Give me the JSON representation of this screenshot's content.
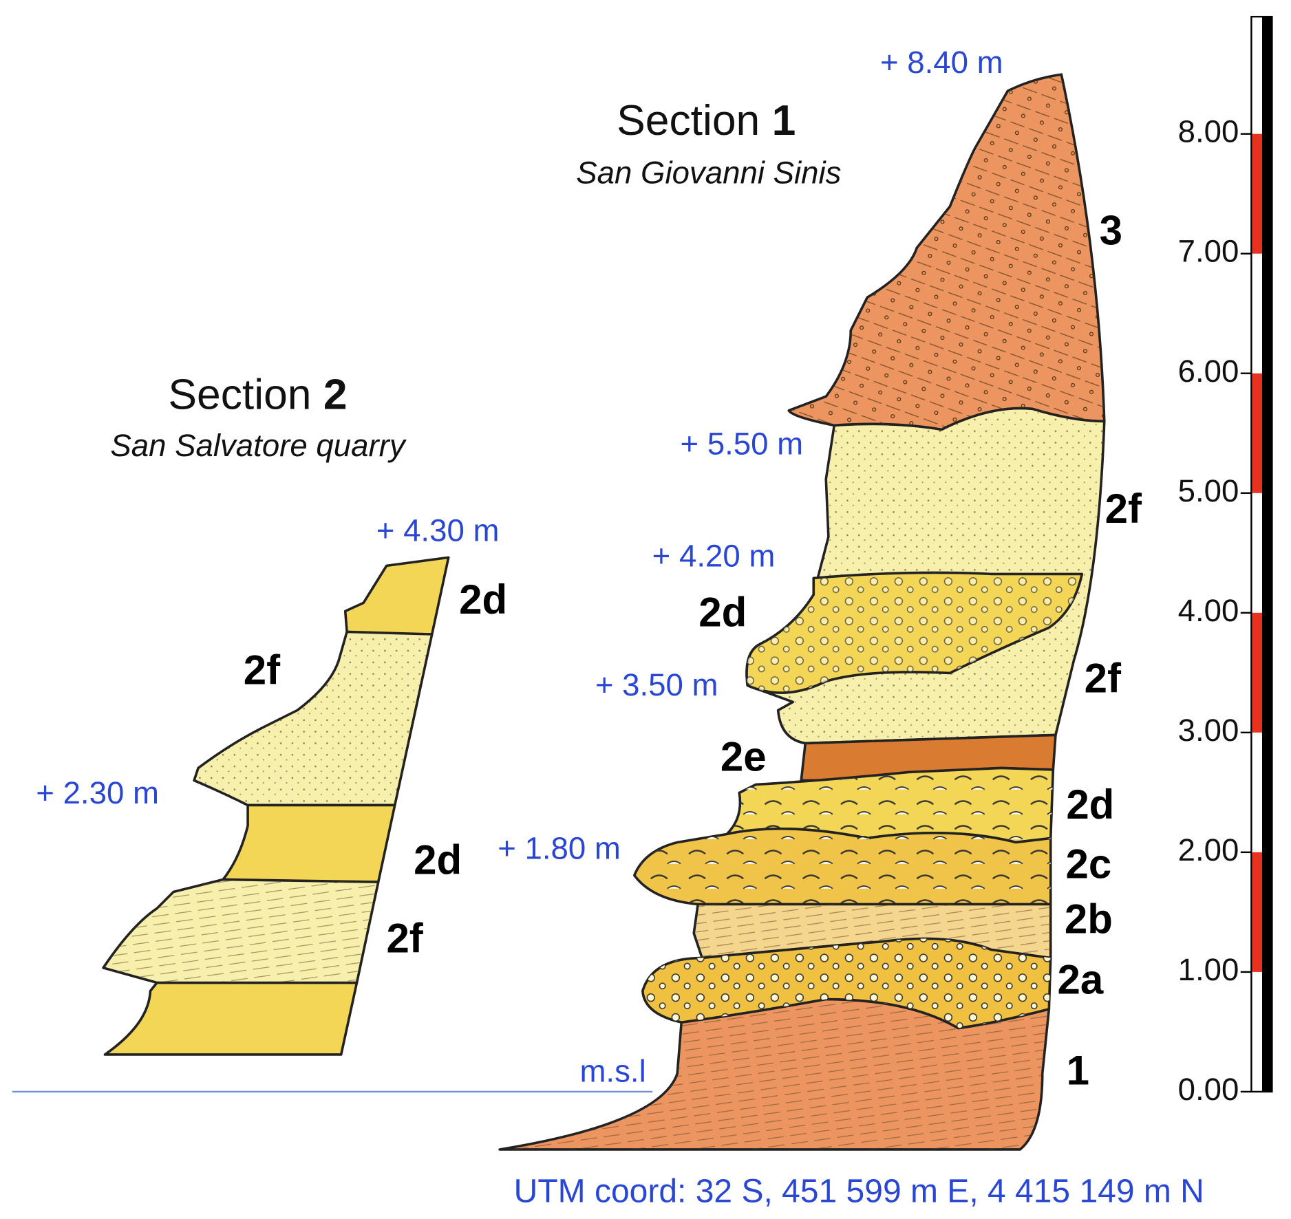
{
  "section1": {
    "title": "Section",
    "number": "1",
    "subtitle": "San Giovanni Sinis",
    "elevations": [
      "+ 8.40 m",
      "+ 5.50 m",
      "+ 4.20 m",
      "+ 3.50 m",
      "+ 1.80 m"
    ],
    "layers": [
      "3",
      "2f",
      "2d",
      "2f",
      "2e",
      "2d",
      "2c",
      "2b",
      "2a",
      "1"
    ],
    "msl": "m.s.l"
  },
  "section2": {
    "title": "Section",
    "number": "2",
    "subtitle": "San Salvatore  quarry",
    "elevations": [
      "+ 4.30 m",
      "+ 2.30 m"
    ],
    "layers": [
      "2d",
      "2f",
      "2d",
      "2f"
    ]
  },
  "scale": {
    "ticks": [
      "0.00",
      "1.00",
      "2.00",
      "3.00",
      "4.00",
      "5.00",
      "6.00",
      "7.00",
      "8.00"
    ]
  },
  "footer": {
    "coordinates": "UTM coord: 32 S,  451 599 m E,   4 415 149 m N"
  }
}
